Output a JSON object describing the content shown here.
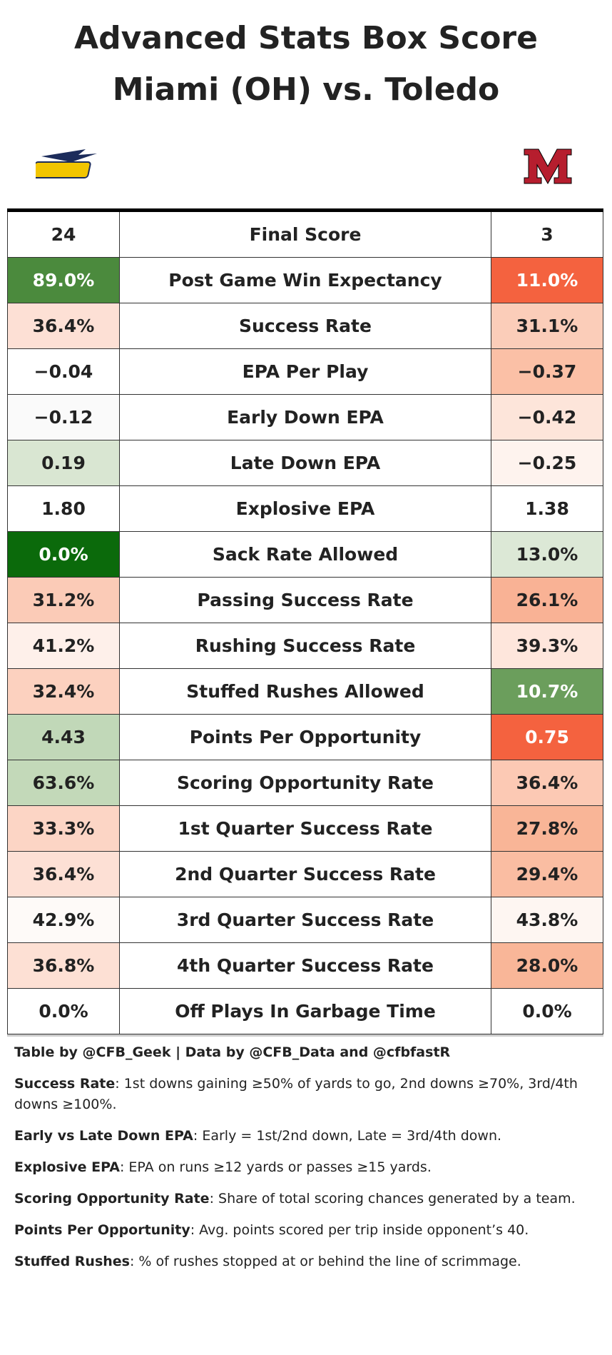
{
  "header": {
    "title": "Advanced Stats Box Score",
    "subtitle": "Miami (OH) vs. Toledo"
  },
  "table": {
    "rows": [
      {
        "left": "24",
        "label": "Final Score",
        "right": "3",
        "left_color": "#ffffff",
        "right_color": "#ffffff"
      },
      {
        "left": "89.0%",
        "label": "Post Game Win Expectancy",
        "right": "11.0%",
        "left_color": "#4b8a3d",
        "right_color": "#f4623f"
      },
      {
        "left": "36.4%",
        "label": "Success Rate",
        "right": "31.1%",
        "left_color": "#fde0d5",
        "right_color": "#fbcdb9"
      },
      {
        "left": "−0.04",
        "label": "EPA Per Play",
        "right": "−0.37",
        "left_color": "#ffffff",
        "right_color": "#fbc0a6"
      },
      {
        "left": "−0.12",
        "label": "Early Down EPA",
        "right": "−0.42",
        "left_color": "#fafafa",
        "right_color": "#fde5da"
      },
      {
        "left": "0.19",
        "label": "Late Down EPA",
        "right": "−0.25",
        "left_color": "#d9e6d2",
        "right_color": "#fef3ee"
      },
      {
        "left": "1.80",
        "label": "Explosive EPA",
        "right": "1.38",
        "left_color": "#ffffff",
        "right_color": "#ffffff"
      },
      {
        "left": "0.0%",
        "label": "Sack Rate Allowed",
        "right": "13.0%",
        "left_color": "#0b6a0b",
        "right_color": "#dce8d6"
      },
      {
        "left": "31.2%",
        "label": "Passing Success Rate",
        "right": "26.1%",
        "left_color": "#fbcbb7",
        "right_color": "#f9b295"
      },
      {
        "left": "41.2%",
        "label": "Rushing Success Rate",
        "right": "39.3%",
        "left_color": "#fef0ea",
        "right_color": "#fee6dc"
      },
      {
        "left": "32.4%",
        "label": "Stuffed Rushes Allowed",
        "right": "10.7%",
        "left_color": "#fcd1bf",
        "right_color": "#6b9e5c"
      },
      {
        "left": "4.43",
        "label": "Points Per Opportunity",
        "right": "0.75",
        "left_color": "#c1d8b8",
        "right_color": "#f4623f"
      },
      {
        "left": "63.6%",
        "label": "Scoring Opportunity Rate",
        "right": "36.4%",
        "left_color": "#c3d9b9",
        "right_color": "#fcc9b4"
      },
      {
        "left": "33.3%",
        "label": "1st Quarter Success Rate",
        "right": "27.8%",
        "left_color": "#fcd5c5",
        "right_color": "#f9b597"
      },
      {
        "left": "36.4%",
        "label": "2nd Quarter Success Rate",
        "right": "29.4%",
        "left_color": "#fde0d5",
        "right_color": "#fabda2"
      },
      {
        "left": "42.9%",
        "label": "3rd Quarter Success Rate",
        "right": "43.8%",
        "left_color": "#fefaf8",
        "right_color": "#fef6f2"
      },
      {
        "left": "36.8%",
        "label": "4th Quarter Success Rate",
        "right": "28.0%",
        "left_color": "#fde0d4",
        "right_color": "#f9b698"
      },
      {
        "left": "0.0%",
        "label": "Off Plays In Garbage Time",
        "right": "0.0%",
        "left_color": "#ffffff",
        "right_color": "#ffffff"
      }
    ]
  },
  "footer": {
    "credit": "Table by @CFB_Geek | Data by @CFB_Data and @cfbfastR",
    "notes": [
      {
        "term": "Success Rate",
        "text": ": 1st downs gaining ≥50% of yards to go, 2nd downs ≥70%, 3rd/4th downs ≥100%."
      },
      {
        "term": "Early vs Late Down EPA",
        "text": ": Early = 1st/2nd down, Late = 3rd/4th down."
      },
      {
        "term": "Explosive EPA",
        "text": ": EPA on runs ≥12 yards or passes ≥15 yards."
      },
      {
        "term": "Scoring Opportunity Rate",
        "text": ": Share of total scoring chances generated by a team."
      },
      {
        "term": "Points Per Opportunity",
        "text": ": Avg. points scored per trip inside opponent’s 40."
      },
      {
        "term": "Stuffed Rushes",
        "text": ": % of rushes stopped at or behind the line of scrimmage."
      }
    ]
  }
}
